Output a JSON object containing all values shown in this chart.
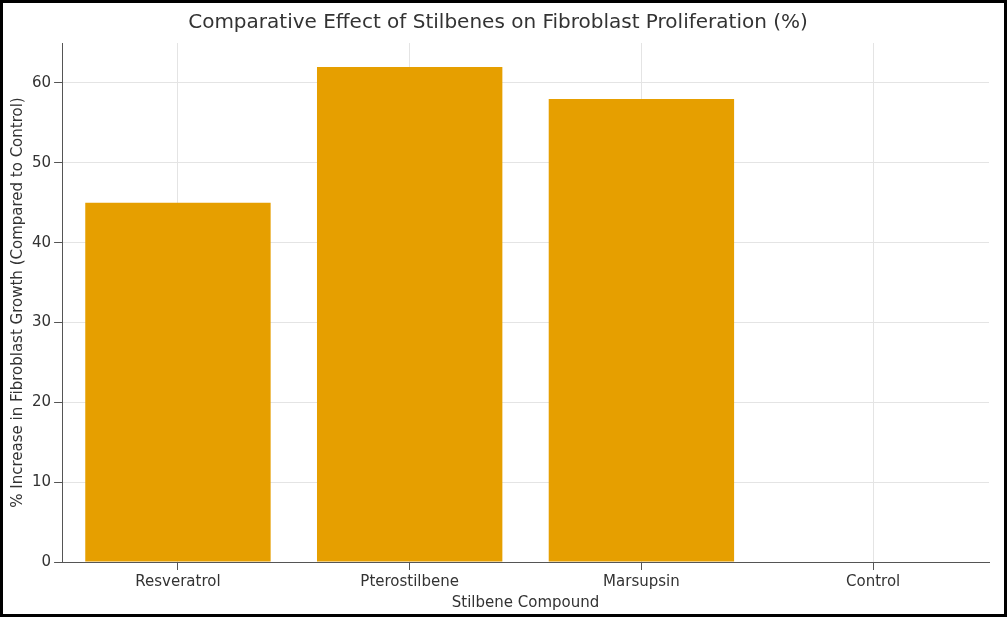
{
  "chart_data": {
    "type": "bar",
    "title": "Comparative Effect of Stilbenes on Fibroblast Proliferation (%)",
    "xlabel": "Stilbene Compound",
    "ylabel": "% Increase in Fibroblast Growth (Compared to Control)",
    "categories": [
      "Resveratrol",
      "Pterostilbene",
      "Marsupsin",
      "Control"
    ],
    "values": [
      45,
      62,
      58,
      0
    ],
    "color": "#e69f00",
    "ylim": [
      0,
      65
    ],
    "yticks": [
      0,
      10,
      20,
      30,
      40,
      50,
      60
    ],
    "grid": true
  }
}
